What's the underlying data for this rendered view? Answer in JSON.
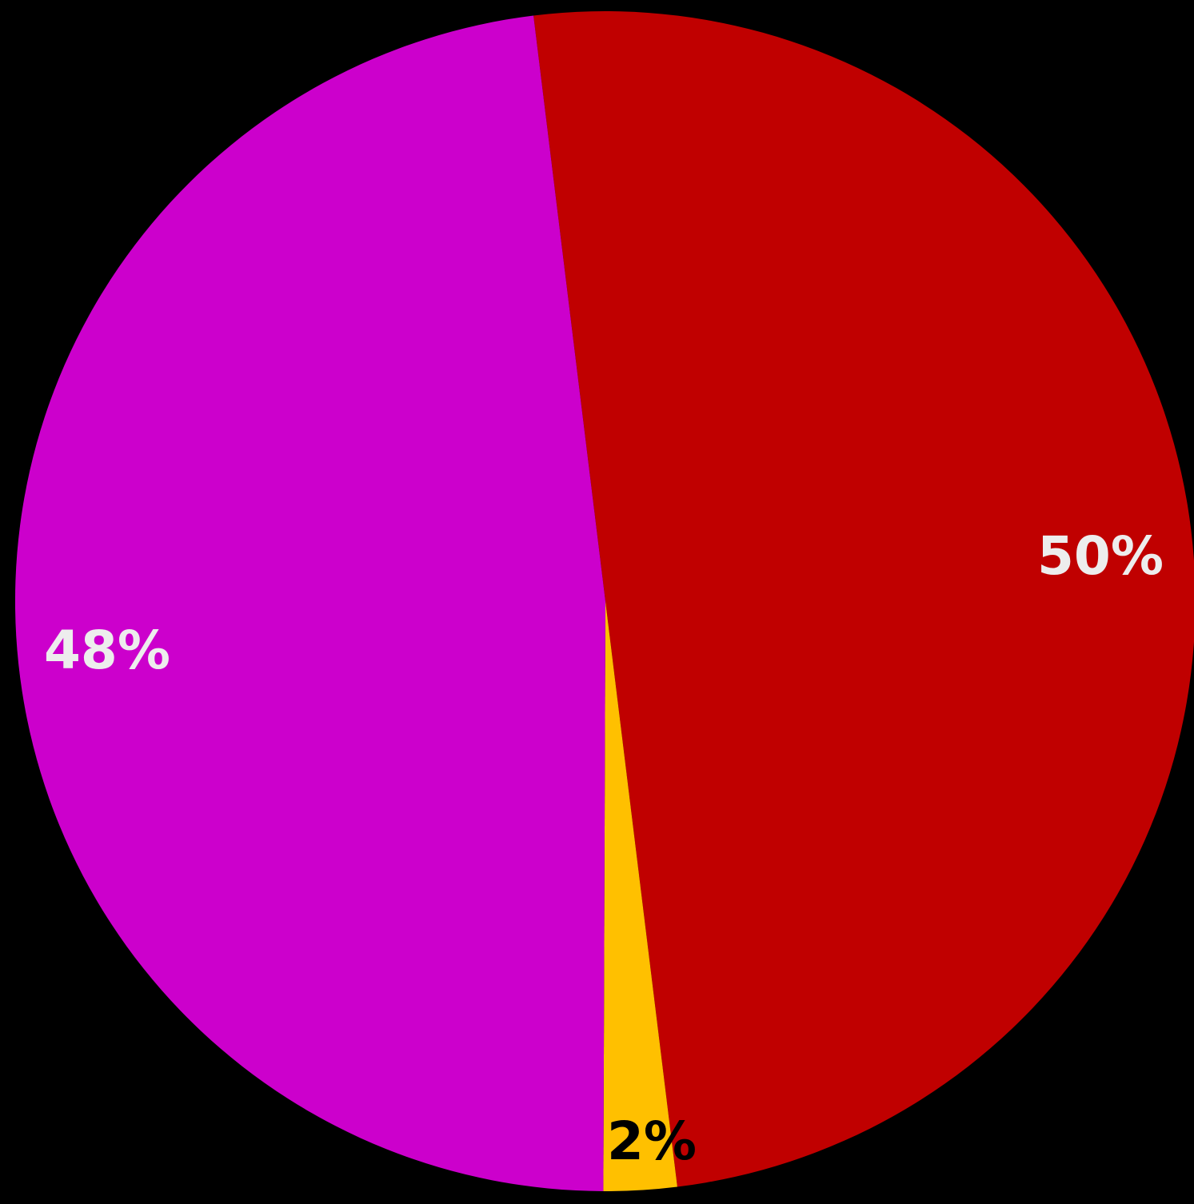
{
  "chart_data": {
    "type": "pie",
    "slices": [
      {
        "value": 50,
        "label": "50%",
        "color": "#C00000",
        "label_color": "#EDEDED"
      },
      {
        "value": 2,
        "label": "2%",
        "color": "#FFC000",
        "label_color": "#000000"
      },
      {
        "value": 48,
        "label": "48%",
        "color": "#CC00CC",
        "label_color": "#EDEDED"
      }
    ],
    "start_angle_deg": -7,
    "direction": "clockwise",
    "background": "#000000"
  }
}
